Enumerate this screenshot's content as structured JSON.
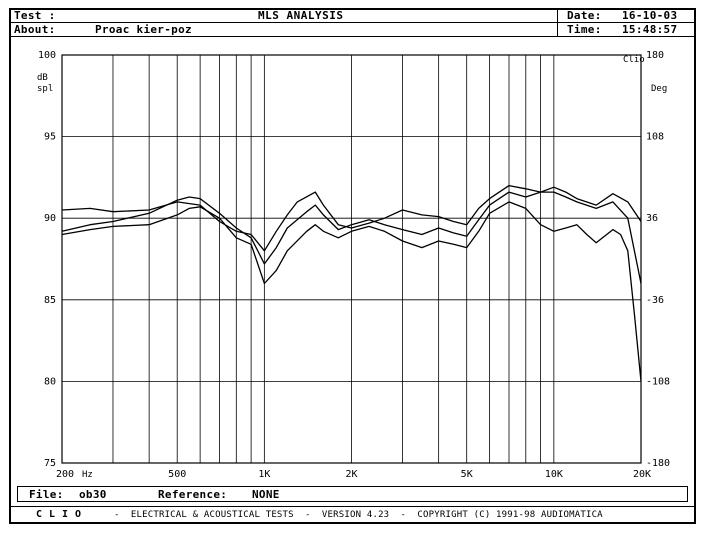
{
  "header": {
    "test_label": "Test :",
    "about_label": "About:",
    "about_value": "Proac kier-poz",
    "title": "MLS ANALYSIS",
    "date_label": "Date:",
    "date_value": "16-10-03",
    "time_label": "Time:",
    "time_value": "15:48:57"
  },
  "file_bar": {
    "file_label": "File:",
    "file_value": "ob30",
    "reference_label": "Reference:",
    "reference_value": "NONE"
  },
  "footer": {
    "brand": "CLIO",
    "text": "-  ELECTRICAL & ACOUSTICAL TESTS  -  VERSION 4.23  -  COPYRIGHT (C) 1991-98 AUDIOMATICA"
  },
  "chart_data": {
    "type": "line",
    "title": "",
    "xlabel": "Hz",
    "ylabel_left": "dB spl",
    "ylabel_right": "Deg",
    "right_top_label": "Clio",
    "x_scale": "log",
    "xlim": [
      200,
      20000
    ],
    "ylim": [
      75,
      100
    ],
    "y2lim": [
      -180,
      180
    ],
    "grid": true,
    "x_tick_labels": [
      {
        "value": 200,
        "label": "200"
      },
      {
        "value": 500,
        "label": "500"
      },
      {
        "value": 1000,
        "label": "1K"
      },
      {
        "value": 2000,
        "label": "2K"
      },
      {
        "value": 5000,
        "label": "5K"
      },
      {
        "value": 10000,
        "label": "10K"
      },
      {
        "value": 20000,
        "label": "20K"
      }
    ],
    "y_ticks": [
      75,
      80,
      85,
      90,
      95,
      100
    ],
    "y2_ticks": [
      -180,
      -108,
      -36,
      36,
      108,
      180
    ],
    "series": [
      {
        "values": [
          [
            200,
            89.2
          ],
          [
            250,
            89.6
          ],
          [
            300,
            89.8
          ],
          [
            400,
            90.3
          ],
          [
            500,
            91.1
          ],
          [
            550,
            91.3
          ],
          [
            600,
            91.2
          ],
          [
            700,
            90.3
          ],
          [
            800,
            89.4
          ],
          [
            900,
            88.8
          ],
          [
            1000,
            87.2
          ],
          [
            1100,
            88.2
          ],
          [
            1200,
            89.4
          ],
          [
            1400,
            90.4
          ],
          [
            1500,
            90.8
          ],
          [
            1600,
            90.2
          ],
          [
            1800,
            89.3
          ],
          [
            2000,
            89.6
          ],
          [
            2300,
            89.9
          ],
          [
            2600,
            89.6
          ],
          [
            3000,
            89.3
          ],
          [
            3500,
            89.0
          ],
          [
            4000,
            89.4
          ],
          [
            4500,
            89.1
          ],
          [
            5000,
            88.9
          ],
          [
            5500,
            89.9
          ],
          [
            6000,
            90.8
          ],
          [
            7000,
            91.6
          ],
          [
            8000,
            91.3
          ],
          [
            9000,
            91.6
          ],
          [
            10000,
            91.6
          ],
          [
            11000,
            91.3
          ],
          [
            12000,
            91.0
          ],
          [
            14000,
            90.6
          ],
          [
            16000,
            91.0
          ],
          [
            18000,
            90.0
          ],
          [
            20000,
            86.0
          ]
        ]
      },
      {
        "values": [
          [
            200,
            90.5
          ],
          [
            250,
            90.6
          ],
          [
            300,
            90.4
          ],
          [
            400,
            90.5
          ],
          [
            500,
            91.0
          ],
          [
            600,
            90.8
          ],
          [
            700,
            89.8
          ],
          [
            800,
            89.2
          ],
          [
            900,
            89.0
          ],
          [
            1000,
            88.0
          ],
          [
            1100,
            89.2
          ],
          [
            1200,
            90.2
          ],
          [
            1300,
            91.0
          ],
          [
            1500,
            91.6
          ],
          [
            1600,
            90.8
          ],
          [
            1800,
            89.6
          ],
          [
            2000,
            89.4
          ],
          [
            2300,
            89.7
          ],
          [
            2600,
            90.0
          ],
          [
            3000,
            90.5
          ],
          [
            3500,
            90.2
          ],
          [
            4000,
            90.1
          ],
          [
            4500,
            89.8
          ],
          [
            5000,
            89.6
          ],
          [
            5500,
            90.6
          ],
          [
            6000,
            91.2
          ],
          [
            7000,
            92.0
          ],
          [
            8000,
            91.8
          ],
          [
            9000,
            91.6
          ],
          [
            10000,
            91.9
          ],
          [
            11000,
            91.6
          ],
          [
            12000,
            91.2
          ],
          [
            14000,
            90.8
          ],
          [
            16000,
            91.5
          ],
          [
            18000,
            91.0
          ],
          [
            20000,
            89.8
          ]
        ]
      },
      {
        "values": [
          [
            200,
            89.0
          ],
          [
            250,
            89.3
          ],
          [
            300,
            89.5
          ],
          [
            400,
            89.6
          ],
          [
            500,
            90.2
          ],
          [
            550,
            90.6
          ],
          [
            600,
            90.7
          ],
          [
            700,
            90.0
          ],
          [
            800,
            88.8
          ],
          [
            900,
            88.4
          ],
          [
            1000,
            86.0
          ],
          [
            1100,
            86.8
          ],
          [
            1200,
            88.0
          ],
          [
            1400,
            89.2
          ],
          [
            1500,
            89.6
          ],
          [
            1600,
            89.2
          ],
          [
            1800,
            88.8
          ],
          [
            2000,
            89.2
          ],
          [
            2300,
            89.5
          ],
          [
            2600,
            89.2
          ],
          [
            3000,
            88.6
          ],
          [
            3500,
            88.2
          ],
          [
            4000,
            88.6
          ],
          [
            4500,
            88.4
          ],
          [
            5000,
            88.2
          ],
          [
            5500,
            89.2
          ],
          [
            6000,
            90.3
          ],
          [
            7000,
            91.0
          ],
          [
            8000,
            90.6
          ],
          [
            9000,
            89.6
          ],
          [
            10000,
            89.2
          ],
          [
            11000,
            89.4
          ],
          [
            12000,
            89.6
          ],
          [
            13000,
            89.0
          ],
          [
            14000,
            88.5
          ],
          [
            16000,
            89.3
          ],
          [
            17000,
            89.0
          ],
          [
            18000,
            88.0
          ],
          [
            19000,
            84.0
          ],
          [
            20000,
            80.0
          ]
        ]
      }
    ]
  }
}
